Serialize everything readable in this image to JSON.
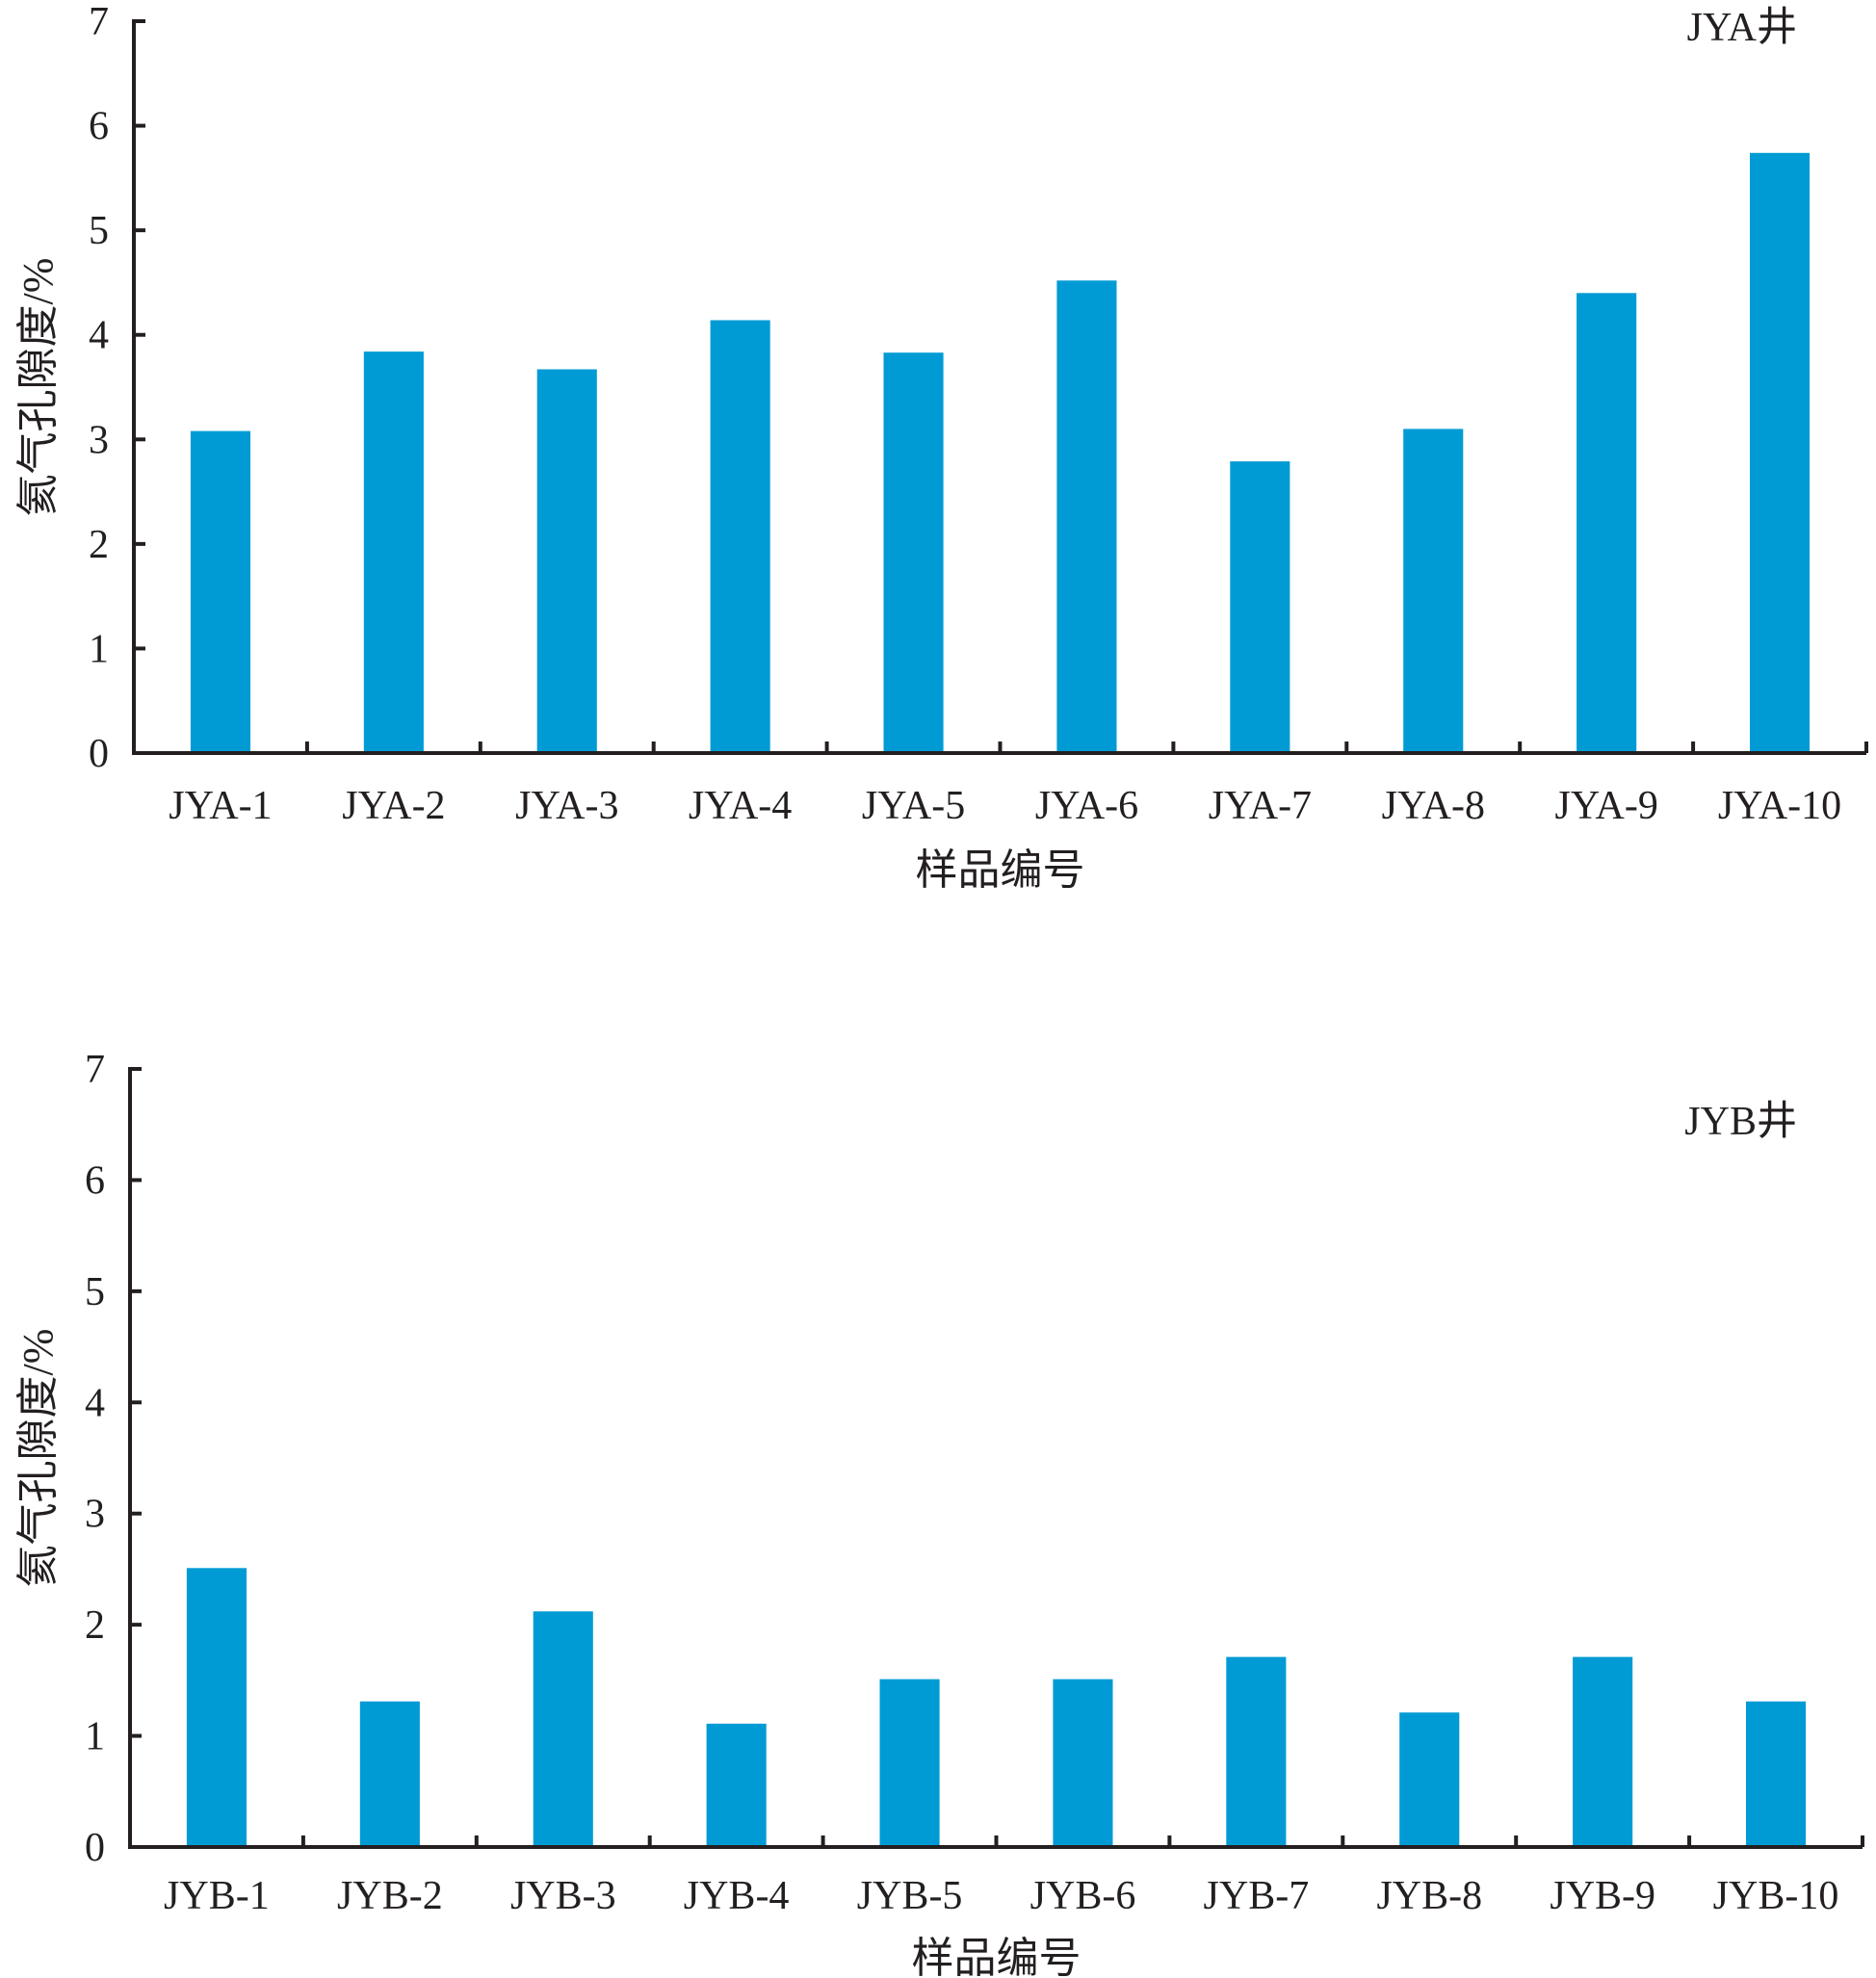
{
  "chart_data": [
    {
      "type": "bar",
      "panel_label": "JYA井",
      "categories": [
        "JYA-1",
        "JYA-2",
        "JYA-3",
        "JYA-4",
        "JYA-5",
        "JYA-6",
        "JYA-7",
        "JYA-8",
        "JYA-9",
        "JYA-10"
      ],
      "values": [
        3.08,
        3.84,
        3.67,
        4.14,
        3.83,
        4.52,
        2.79,
        3.1,
        4.4,
        5.74
      ],
      "xlabel": "样品编号",
      "ylabel": "氦气孔隙度/%",
      "ylim": [
        0,
        7
      ],
      "yticks": [
        "0",
        "1",
        "2",
        "3",
        "4",
        "5",
        "6",
        "7"
      ],
      "bar_color": "#009bd5",
      "grid": false
    },
    {
      "type": "bar",
      "panel_label": "JYB井",
      "categories": [
        "JYB-1",
        "JYB-2",
        "JYB-3",
        "JYB-4",
        "JYB-5",
        "JYB-6",
        "JYB-7",
        "JYB-8",
        "JYB-9",
        "JYB-10"
      ],
      "values": [
        2.51,
        1.31,
        2.12,
        1.11,
        1.51,
        1.51,
        1.71,
        1.21,
        1.71,
        1.31
      ],
      "xlabel": "样品编号",
      "ylabel": "氦气孔隙度/%",
      "ylim": [
        0,
        7
      ],
      "yticks": [
        "0",
        "1",
        "2",
        "3",
        "4",
        "5",
        "6",
        "7"
      ],
      "bar_color": "#009bd5",
      "grid": false
    }
  ]
}
